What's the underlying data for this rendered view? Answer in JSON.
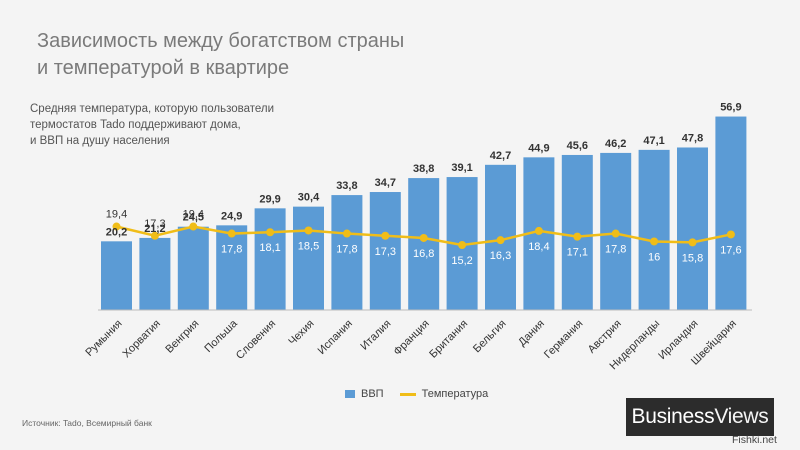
{
  "header": {
    "title_line1": "Зависимость между богатством страны",
    "title_line2": "и температурой  в квартире",
    "subtitle_line1": "Средняя температура,  которую пользователи",
    "subtitle_line2": "термостатов  Tado поддерживают дома,",
    "subtitle_line3": "и ВВП на душу населения"
  },
  "legend": {
    "bar_label": "ВВП",
    "line_label": "Температура"
  },
  "footer": {
    "source": "Источник: Tado, Всемирный банк",
    "logo_business": "Business",
    "logo_views": "Views",
    "watermark": "Fishki.net"
  },
  "colors": {
    "bar": "#5b9bd5",
    "line": "#f0bd18",
    "background": "#f4f4f4"
  },
  "chart_data": {
    "type": "bar",
    "title": "Зависимость между богатством страны и температурой  в квартире",
    "categories": [
      "Румыния",
      "Хорватия",
      "Венгрия",
      "Польша",
      "Словения",
      "Чехия",
      "Испания",
      "Италия",
      "Франция",
      "Британия",
      "Бельгия",
      "Дания",
      "Германия",
      "Австрия",
      "Нидерланды",
      "Ирландия",
      "Швейцария"
    ],
    "series": [
      {
        "name": "ВВП",
        "type": "bar",
        "values": [
          20.2,
          21.2,
          24.5,
          24.9,
          29.9,
          30.4,
          33.8,
          34.7,
          38.8,
          39.1,
          42.7,
          44.9,
          45.6,
          46.2,
          47.1,
          47.8,
          56.9
        ],
        "labels": [
          "20,2",
          "21,2",
          "24,5",
          "24,9",
          "29,9",
          "30,4",
          "33,8",
          "34,7",
          "38,8",
          "39,1",
          "42,7",
          "44,9",
          "45,6",
          "46,2",
          "47,1",
          "47,8",
          "56,9"
        ]
      },
      {
        "name": "Температура",
        "type": "line",
        "values": [
          19.4,
          17.3,
          19.4,
          17.8,
          18.1,
          18.5,
          17.8,
          17.3,
          16.8,
          15.2,
          16.3,
          18.4,
          17.1,
          17.8,
          16.0,
          15.8,
          17.6
        ],
        "labels": [
          "19,4",
          "17,3",
          "19,4",
          "17,8",
          "18,1",
          "18,5",
          "17,8",
          "17,3",
          "16,8",
          "15,2",
          "16,3",
          "18,4",
          "17,1",
          "17,8",
          "16",
          "15,8",
          "17,6"
        ]
      }
    ],
    "legend_position": "bottom"
  }
}
